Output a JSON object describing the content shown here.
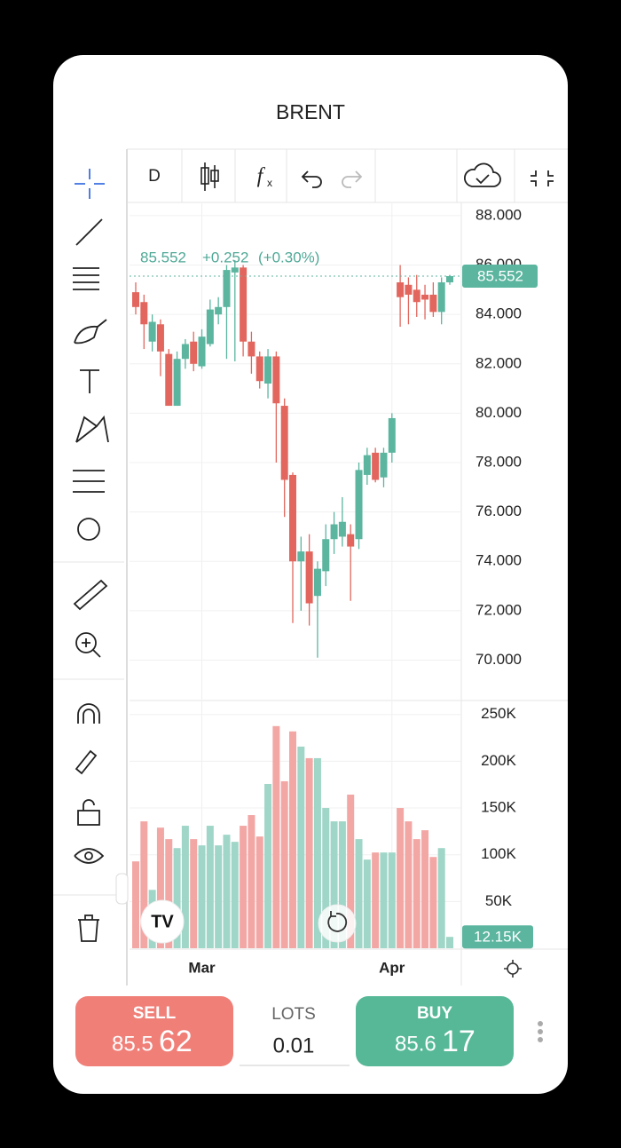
{
  "header": {
    "title": "BRENT"
  },
  "toolbar": {
    "interval": "D"
  },
  "legend": {
    "change": "+0.252",
    "change_pct": "(+0.30%)"
  },
  "trade": {
    "sell": {
      "label": "SELL",
      "price_main": "85.5",
      "price_pips": "62"
    },
    "lots": {
      "label": "LOTS",
      "value": "0.01"
    },
    "buy": {
      "label": "BUY",
      "price_main": "85.6",
      "price_pips": "17"
    }
  },
  "chart_data": [
    {
      "type": "candlestick",
      "categories": [
        null,
        null,
        null,
        null,
        null,
        null,
        null,
        null,
        "Mar",
        null,
        null,
        null,
        null,
        null,
        null,
        null,
        null,
        null,
        null,
        null,
        null,
        null,
        null,
        null,
        null,
        null,
        null,
        null,
        null,
        null,
        null,
        "Apr",
        null,
        null,
        null,
        null,
        null,
        null,
        null
      ],
      "open": [
        84.9,
        84.5,
        82.9,
        83.6,
        82.4,
        80.3,
        82.2,
        82.9,
        81.9,
        82.8,
        84.0,
        84.3,
        85.7,
        85.9,
        82.9,
        82.3,
        81.2,
        82.3,
        80.3,
        77.5,
        74.0,
        74.4,
        72.6,
        73.6,
        74.9,
        75.0,
        75.1,
        74.9,
        77.5,
        78.4,
        77.4,
        78.4,
        85.3,
        85.2,
        85.0,
        84.8,
        84.8,
        84.1,
        85.3
      ],
      "high": [
        85.3,
        84.8,
        84.0,
        83.8,
        82.6,
        82.5,
        83.0,
        83.3,
        83.4,
        84.6,
        84.7,
        86.0,
        86.2,
        86.0,
        83.3,
        82.5,
        82.6,
        82.5,
        80.6,
        77.6,
        75.0,
        75.1,
        74.0,
        75.5,
        76.0,
        76.6,
        75.5,
        78.0,
        78.6,
        78.6,
        78.6,
        80.0,
        86.0,
        85.5,
        85.6,
        85.2,
        85.3,
        85.5,
        85.6
      ],
      "low": [
        84.0,
        82.6,
        82.5,
        81.5,
        80.3,
        80.3,
        81.8,
        81.7,
        81.8,
        82.7,
        83.6,
        82.2,
        82.1,
        82.3,
        81.6,
        81.0,
        80.6,
        78.0,
        75.8,
        71.5,
        72.0,
        71.4,
        70.1,
        73.0,
        74.3,
        74.6,
        72.4,
        74.5,
        77.1,
        77.2,
        77.0,
        78.0,
        83.5,
        83.6,
        83.9,
        83.8,
        83.9,
        83.6,
        85.2
      ],
      "close": [
        84.3,
        83.6,
        83.7,
        82.5,
        80.3,
        82.2,
        82.8,
        82.0,
        83.1,
        84.2,
        84.3,
        85.8,
        85.9,
        82.9,
        82.3,
        81.3,
        82.3,
        80.4,
        77.3,
        74.0,
        74.4,
        72.3,
        73.7,
        74.9,
        75.5,
        75.6,
        74.6,
        77.7,
        78.3,
        77.3,
        78.4,
        79.8,
        84.7,
        84.8,
        84.5,
        84.6,
        84.1,
        85.3,
        85.552
      ],
      "up_color": "#5bb59f",
      "down_color": "#e2665d",
      "ylim": [
        68.4,
        88.5
      ],
      "yticks": [
        {
          "value": 70,
          "label": "70.000"
        },
        {
          "value": 72,
          "label": "72.000"
        },
        {
          "value": 74,
          "label": "74.000"
        },
        {
          "value": 76,
          "label": "76.000"
        },
        {
          "value": 78,
          "label": "78.000"
        },
        {
          "value": 80,
          "label": "80.000"
        },
        {
          "value": 82,
          "label": "82.000"
        },
        {
          "value": 84,
          "label": "84.000"
        },
        {
          "value": 86,
          "label": "86.000"
        },
        {
          "value": 88,
          "label": "88.000"
        }
      ],
      "grid": true
    },
    {
      "type": "bar",
      "values": [
        92900,
        135700,
        62400,
        129000,
        116700,
        107100,
        131000,
        116700,
        110000,
        131000,
        110000,
        121400,
        113800,
        131000,
        142400,
        119500,
        175700,
        237600,
        178600,
        231900,
        215700,
        203300,
        203300,
        150000,
        135700,
        135700,
        164300,
        116700,
        94800,
        102400,
        102400,
        102400,
        150000,
        135700,
        116700,
        126200,
        97600,
        107100,
        12150
      ],
      "value_labels": [
        null,
        null,
        null,
        null,
        null,
        null,
        null,
        null,
        null,
        null,
        null,
        null,
        null,
        null,
        null,
        null,
        null,
        null,
        null,
        null,
        null,
        null,
        null,
        null,
        null,
        null,
        null,
        null,
        null,
        null,
        null,
        null,
        null,
        null,
        null,
        null,
        null,
        null,
        "12.15K"
      ],
      "up_color": "#9fd6c7",
      "down_color": "#f2a7a5",
      "ylim": [
        0,
        264000
      ],
      "yticks": [
        {
          "value": 50000,
          "label": "50K"
        },
        {
          "value": 100000,
          "label": "100K"
        },
        {
          "value": 150000,
          "label": "150K"
        },
        {
          "value": 200000,
          "label": "200K"
        },
        {
          "value": 250000,
          "label": "250K"
        }
      ],
      "grid": true
    }
  ]
}
